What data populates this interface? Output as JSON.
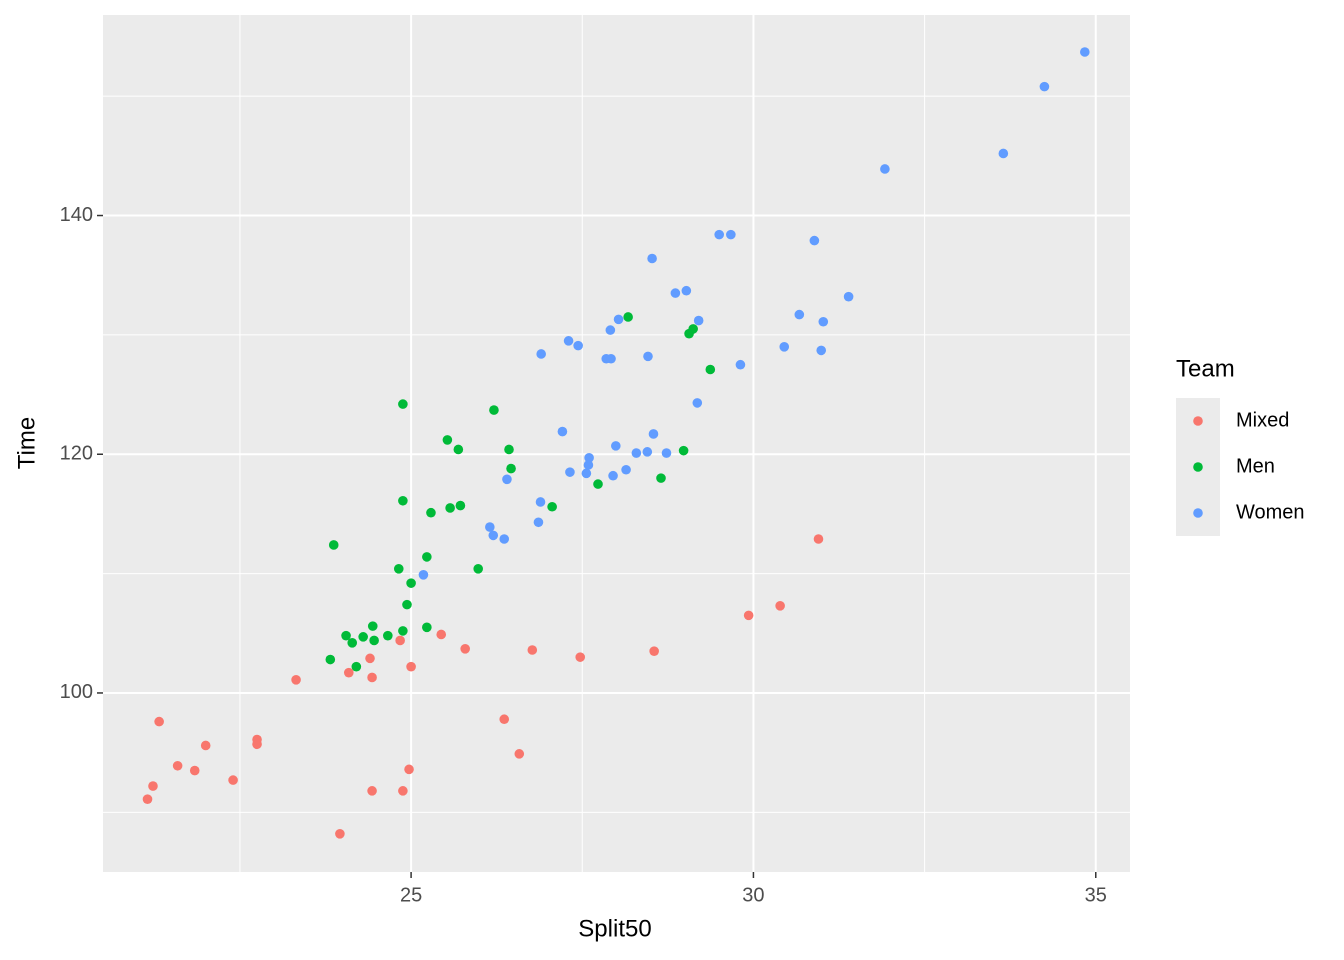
{
  "chart_data": {
    "type": "scatter",
    "x_label": "Split50",
    "y_label": "Time",
    "legend_title": "Team",
    "xlim": [
      20.5,
      35.5
    ],
    "ylim": [
      85,
      156.8
    ],
    "xticks": [
      25,
      30,
      35
    ],
    "yticks": [
      100,
      120,
      140
    ],
    "xminor": [
      22.5,
      27.5,
      32.5
    ],
    "yminor": [
      90,
      110,
      130,
      150
    ],
    "grid": true,
    "legend": "right",
    "series": [
      {
        "name": "Mixed",
        "color": "#F8766D",
        "x": [
          21.15,
          21.23,
          21.32,
          21.59,
          21.84,
          22.0,
          22.4,
          22.75,
          22.75,
          23.32,
          23.96,
          24.09,
          24.4,
          24.43,
          24.43,
          24.84,
          24.88,
          24.97,
          25.0,
          25.44,
          25.79,
          26.36,
          26.58,
          26.77,
          27.47,
          28.55,
          29.93,
          30.39,
          30.95
        ],
        "values": [
          91.1,
          92.2,
          97.6,
          93.9,
          93.5,
          95.6,
          92.7,
          96.1,
          95.7,
          101.1,
          88.2,
          101.7,
          102.9,
          101.3,
          91.8,
          104.4,
          91.8,
          93.6,
          102.2,
          104.9,
          103.7,
          97.8,
          94.9,
          103.6,
          103.0,
          103.5,
          106.5,
          107.3,
          112.9
        ]
      },
      {
        "name": "Men",
        "color": "#00BA38",
        "x": [
          23.82,
          23.87,
          24.05,
          24.14,
          24.2,
          24.3,
          24.44,
          24.46,
          24.66,
          24.82,
          24.88,
          24.88,
          24.88,
          24.94,
          25.0,
          25.23,
          25.23,
          25.29,
          25.53,
          25.57,
          25.69,
          25.72,
          25.98,
          26.21,
          26.43,
          26.46,
          27.06,
          27.73,
          28.17,
          28.65,
          28.98,
          29.06,
          29.12,
          29.37
        ],
        "values": [
          102.8,
          112.4,
          104.8,
          104.2,
          102.2,
          104.7,
          105.6,
          104.4,
          104.8,
          110.4,
          124.2,
          116.1,
          105.2,
          107.4,
          109.2,
          111.4,
          105.5,
          115.1,
          121.2,
          115.5,
          120.4,
          115.7,
          110.4,
          123.7,
          120.4,
          118.8,
          115.6,
          117.5,
          131.5,
          118.0,
          120.3,
          130.1,
          130.5,
          127.1
        ]
      },
      {
        "name": "Women",
        "color": "#619CFF",
        "x": [
          25.18,
          26.15,
          26.2,
          26.36,
          26.4,
          26.86,
          26.89,
          26.9,
          27.21,
          27.3,
          27.32,
          27.44,
          27.56,
          27.59,
          27.6,
          27.85,
          27.91,
          27.92,
          27.95,
          27.99,
          28.03,
          28.14,
          28.29,
          28.45,
          28.46,
          28.52,
          28.54,
          28.73,
          28.86,
          29.02,
          29.18,
          29.2,
          29.5,
          29.67,
          29.81,
          30.45,
          30.67,
          30.89,
          30.99,
          31.02,
          31.39,
          31.92,
          33.65,
          34.25,
          34.84
        ],
        "values": [
          109.9,
          113.9,
          113.2,
          112.9,
          117.9,
          114.3,
          116.0,
          128.4,
          121.9,
          129.5,
          118.5,
          129.1,
          118.4,
          119.1,
          119.7,
          128.0,
          130.4,
          128.0,
          118.2,
          120.7,
          131.3,
          118.7,
          120.1,
          120.2,
          128.2,
          136.4,
          121.7,
          120.1,
          133.5,
          133.7,
          124.3,
          131.2,
          138.4,
          138.4,
          127.5,
          129.0,
          131.7,
          137.9,
          128.7,
          131.1,
          133.2,
          143.9,
          145.2,
          150.8,
          153.7
        ]
      }
    ]
  }
}
